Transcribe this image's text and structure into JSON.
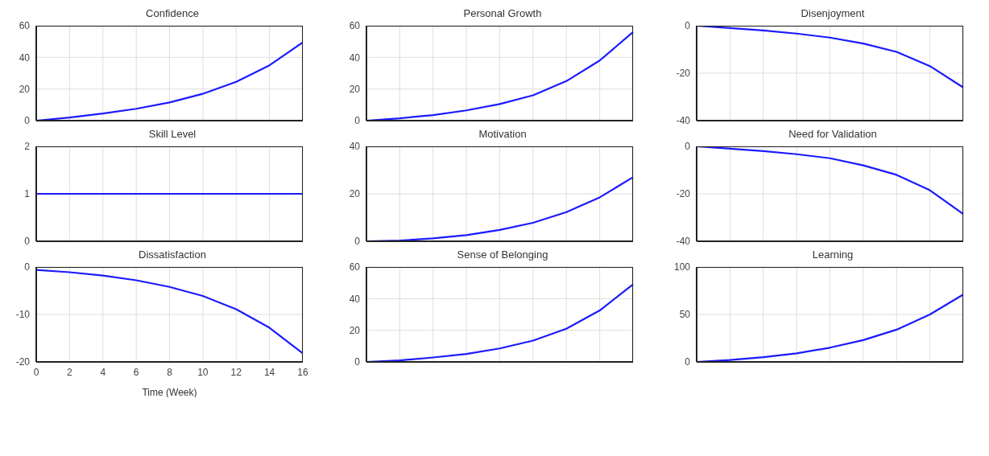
{
  "chart_data": [
    {
      "type": "line",
      "title": "Confidence",
      "x": [
        0,
        2,
        4,
        6,
        8,
        10,
        12,
        14,
        16
      ],
      "series": [
        {
          "color": "#1a1aff",
          "values": [
            0,
            2,
            4.5,
            7.5,
            11.5,
            17,
            24.5,
            35,
            49.5
          ]
        }
      ],
      "xlim": [
        0,
        16
      ],
      "xticks": [
        0,
        2,
        4,
        6,
        8,
        10,
        12,
        14,
        16
      ],
      "ylim": [
        0,
        60
      ],
      "yticks": [
        0,
        20,
        40,
        60
      ],
      "grid": true,
      "tick_labels": "y"
    },
    {
      "type": "line",
      "title": "Skill Level",
      "x": [
        0,
        2,
        4,
        6,
        8,
        10,
        12,
        14,
        16
      ],
      "series": [
        {
          "color": "#1a1aff",
          "values": [
            1,
            1,
            1,
            1,
            1,
            1,
            1,
            1,
            1
          ]
        }
      ],
      "xlim": [
        0,
        16
      ],
      "xticks": [
        0,
        2,
        4,
        6,
        8,
        10,
        12,
        14,
        16
      ],
      "ylim": [
        0,
        2
      ],
      "yticks": [
        0,
        1,
        2
      ],
      "grid": true,
      "tick_labels": "y"
    },
    {
      "type": "line",
      "title": "Dissatisfaction",
      "xlabel": "Time (Week)",
      "x": [
        0,
        2,
        4,
        6,
        8,
        10,
        12,
        14,
        16
      ],
      "series": [
        {
          "color": "#1a1aff",
          "values": [
            -0.6,
            -1.1,
            -1.8,
            -2.8,
            -4.2,
            -6.1,
            -8.9,
            -12.8,
            -18.2
          ]
        }
      ],
      "xlim": [
        0,
        16
      ],
      "xticks": [
        0,
        2,
        4,
        6,
        8,
        10,
        12,
        14,
        16
      ],
      "ylim": [
        -20,
        0
      ],
      "yticks": [
        -20,
        -10,
        0
      ],
      "grid": true
    },
    {
      "type": "line",
      "title": "Personal Growth",
      "categories": [
        null,
        null,
        null,
        null,
        null,
        null,
        null,
        null,
        null
      ],
      "series": [
        {
          "color": "#1a1aff",
          "values": [
            0,
            1.5,
            3.5,
            6.5,
            10.5,
            16,
            25,
            38,
            56
          ]
        }
      ],
      "ylim": [
        0,
        60
      ],
      "yticks": [
        0,
        20,
        40,
        60
      ],
      "grid": true,
      "tick_labels": "y"
    },
    {
      "type": "line",
      "title": "Motivation",
      "categories": [
        null,
        null,
        null,
        null,
        null,
        null,
        null,
        null,
        null
      ],
      "series": [
        {
          "color": "#1a1aff",
          "values": [
            0,
            0.3,
            1.2,
            2.6,
            4.8,
            7.8,
            12.3,
            18.5,
            27
          ]
        }
      ],
      "ylim": [
        0,
        40
      ],
      "yticks": [
        0,
        20,
        40
      ],
      "grid": true,
      "tick_labels": "y"
    },
    {
      "type": "line",
      "title": "Sense of Belonging",
      "categories": [
        null,
        null,
        null,
        null,
        null,
        null,
        null,
        null,
        null
      ],
      "series": [
        {
          "color": "#1a1aff",
          "values": [
            0,
            1,
            2.8,
            5,
            8.5,
            13.5,
            21,
            32.5,
            49
          ]
        }
      ],
      "ylim": [
        0,
        60
      ],
      "yticks": [
        0,
        20,
        40,
        60
      ],
      "grid": true,
      "tick_labels": "y"
    },
    {
      "type": "line",
      "title": "Disenjoyment",
      "categories": [
        null,
        null,
        null,
        null,
        null,
        null,
        null,
        null,
        null
      ],
      "series": [
        {
          "color": "#1a1aff",
          "values": [
            0,
            -1,
            -2,
            -3.3,
            -5,
            -7.5,
            -11,
            -17,
            -26
          ]
        }
      ],
      "ylim": [
        -40,
        0
      ],
      "yticks": [
        -40,
        -20,
        0
      ],
      "grid": true,
      "tick_labels": "y"
    },
    {
      "type": "line",
      "title": "Need for Validation",
      "categories": [
        null,
        null,
        null,
        null,
        null,
        null,
        null,
        null,
        null
      ],
      "series": [
        {
          "color": "#1a1aff",
          "values": [
            0,
            -1,
            -2,
            -3.3,
            -5,
            -8,
            -12,
            -18.5,
            -28.5
          ]
        }
      ],
      "ylim": [
        -40,
        0
      ],
      "yticks": [
        -40,
        -20,
        0
      ],
      "grid": true,
      "tick_labels": "y"
    },
    {
      "type": "line",
      "title": "Learning",
      "categories": [
        null,
        null,
        null,
        null,
        null,
        null,
        null,
        null,
        null
      ],
      "series": [
        {
          "color": "#1a1aff",
          "values": [
            0,
            2,
            5,
            9,
            15,
            23,
            34,
            50,
            71
          ]
        }
      ],
      "ylim": [
        0,
        100
      ],
      "yticks": [
        0,
        50,
        100
      ],
      "grid": true,
      "tick_labels": "y"
    }
  ]
}
